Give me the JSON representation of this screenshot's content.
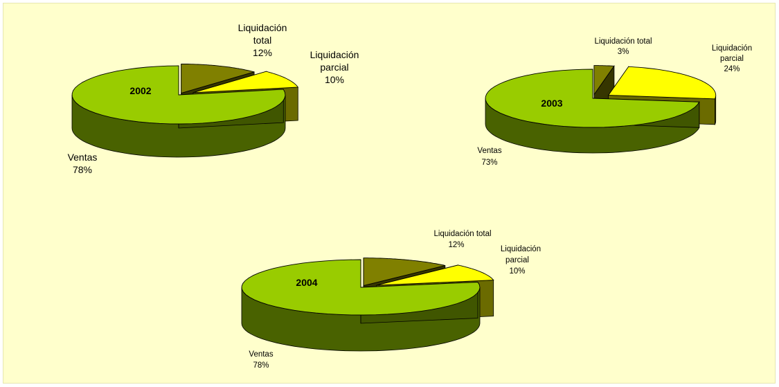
{
  "chart_data": [
    {
      "type": "pie",
      "title": "2002",
      "slices": [
        {
          "label": "Liquidación total",
          "percent_label": "12%",
          "value": 12,
          "color": "#808000"
        },
        {
          "label": "Liquidación parcial",
          "percent_label": "10%",
          "value": 10,
          "color": "#ffff00"
        },
        {
          "label": "Ventas",
          "percent_label": "78%",
          "value": 78,
          "color": "#99cc00"
        }
      ]
    },
    {
      "type": "pie",
      "title": "2003",
      "slices": [
        {
          "label": "Liquidación total",
          "percent_label": "3%",
          "value": 3,
          "color": "#808000"
        },
        {
          "label": "Liquidación parcial",
          "percent_label": "24%",
          "value": 24,
          "color": "#ffff00"
        },
        {
          "label": "Ventas",
          "percent_label": "73%",
          "value": 73,
          "color": "#99cc00"
        }
      ]
    },
    {
      "type": "pie",
      "title": "2004",
      "slices": [
        {
          "label": "Liquidación total",
          "percent_label": "12%",
          "value": 12,
          "color": "#808000"
        },
        {
          "label": "Liquidación parcial",
          "percent_label": "10%",
          "value": 10,
          "color": "#ffff00"
        },
        {
          "label": "Ventas",
          "percent_label": "78%",
          "value": 78,
          "color": "#99cc00"
        }
      ]
    }
  ],
  "labels": {
    "total_line1": "Liquidación",
    "total_line2": "total",
    "total_one_line": "Liquidación total",
    "parcial_line1": "Liquidación",
    "parcial_line2": "parcial",
    "ventas": "Ventas"
  }
}
